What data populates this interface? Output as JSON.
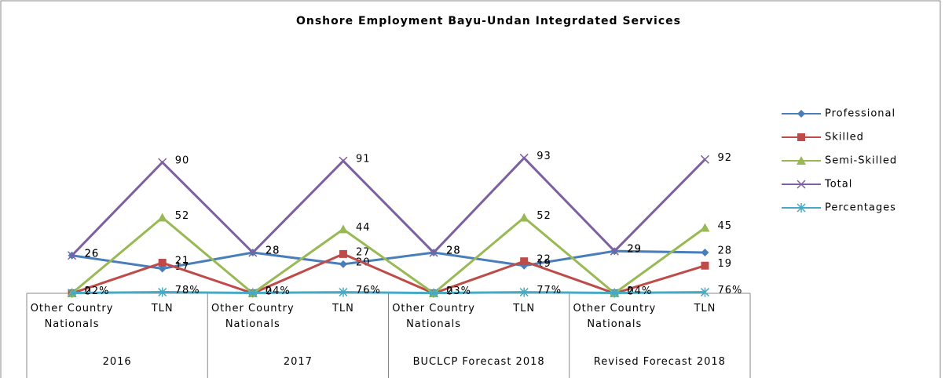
{
  "chart_data": {
    "type": "line",
    "title": "Onshore Employment Bayu-Undan Integrdated Services",
    "categories": [
      "Other Country Nationals",
      "TLN",
      "Other Country Nationals",
      "TLN",
      "Other Country Nationals",
      "TLN",
      "Other Country Nationals",
      "TLN"
    ],
    "groups": [
      "2016",
      "2017",
      "BUCLCP Forecast 2018",
      "Revised Forecast 2018"
    ],
    "ylim": [
      0,
      180
    ],
    "legend": "right",
    "series": [
      {
        "name": "Professional",
        "color": "#4a7ebb",
        "marker": "diamond",
        "values": [
          26,
          17,
          28,
          20,
          28,
          19,
          29,
          28
        ]
      },
      {
        "name": "Skilled",
        "color": "#be4b48",
        "marker": "square",
        "values": [
          0,
          21,
          0,
          27,
          0,
          22,
          0,
          19
        ]
      },
      {
        "name": "Semi-Skilled",
        "color": "#98b954",
        "marker": "triangle",
        "values": [
          0,
          52,
          0,
          44,
          0,
          52,
          0,
          45
        ]
      },
      {
        "name": "Total",
        "color": "#7d60a0",
        "marker": "x",
        "values": [
          26,
          90,
          28,
          91,
          28,
          93,
          29,
          92
        ]
      },
      {
        "name": "Percentages",
        "color": "#46aac5",
        "marker": "star",
        "values": [
          0.22,
          0.78,
          0.24,
          0.76,
          0.23,
          0.77,
          0.24,
          0.76
        ],
        "value_labels": [
          "22%",
          "78%",
          "24%",
          "76%",
          "23%",
          "77%",
          "24%",
          "76%"
        ]
      }
    ]
  }
}
